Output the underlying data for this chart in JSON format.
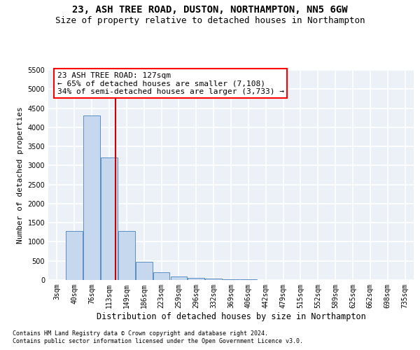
{
  "title1": "23, ASH TREE ROAD, DUSTON, NORTHAMPTON, NN5 6GW",
  "title2": "Size of property relative to detached houses in Northampton",
  "xlabel": "Distribution of detached houses by size in Northampton",
  "ylabel": "Number of detached properties",
  "footnote1": "Contains HM Land Registry data © Crown copyright and database right 2024.",
  "footnote2": "Contains public sector information licensed under the Open Government Licence v3.0.",
  "categories": [
    "3sqm",
    "40sqm",
    "76sqm",
    "113sqm",
    "149sqm",
    "186sqm",
    "223sqm",
    "259sqm",
    "296sqm",
    "332sqm",
    "369sqm",
    "406sqm",
    "442sqm",
    "479sqm",
    "515sqm",
    "552sqm",
    "589sqm",
    "625sqm",
    "662sqm",
    "698sqm",
    "735sqm"
  ],
  "values": [
    0,
    1280,
    4300,
    3200,
    1280,
    480,
    200,
    100,
    60,
    30,
    20,
    10,
    0,
    0,
    0,
    0,
    0,
    0,
    0,
    0,
    0
  ],
  "bar_color": "#c5d8ee",
  "bar_edge_color": "#5b8ec4",
  "vline_x": 3.35,
  "vline_color": "#cc0000",
  "annotation_line1": "23 ASH TREE ROAD: 127sqm",
  "annotation_line2": "← 65% of detached houses are smaller (7,108)",
  "annotation_line3": "34% of semi-detached houses are larger (3,733) →",
  "ylim_max": 5500,
  "yticks": [
    0,
    500,
    1000,
    1500,
    2000,
    2500,
    3000,
    3500,
    4000,
    4500,
    5000,
    5500
  ],
  "background_color": "#ecf1f8",
  "grid_color": "#ffffff",
  "title_fontsize": 10,
  "subtitle_fontsize": 9,
  "ylabel_fontsize": 8,
  "xlabel_fontsize": 8.5,
  "tick_fontsize": 7,
  "annot_fontsize": 8,
  "footnote_fontsize": 6
}
